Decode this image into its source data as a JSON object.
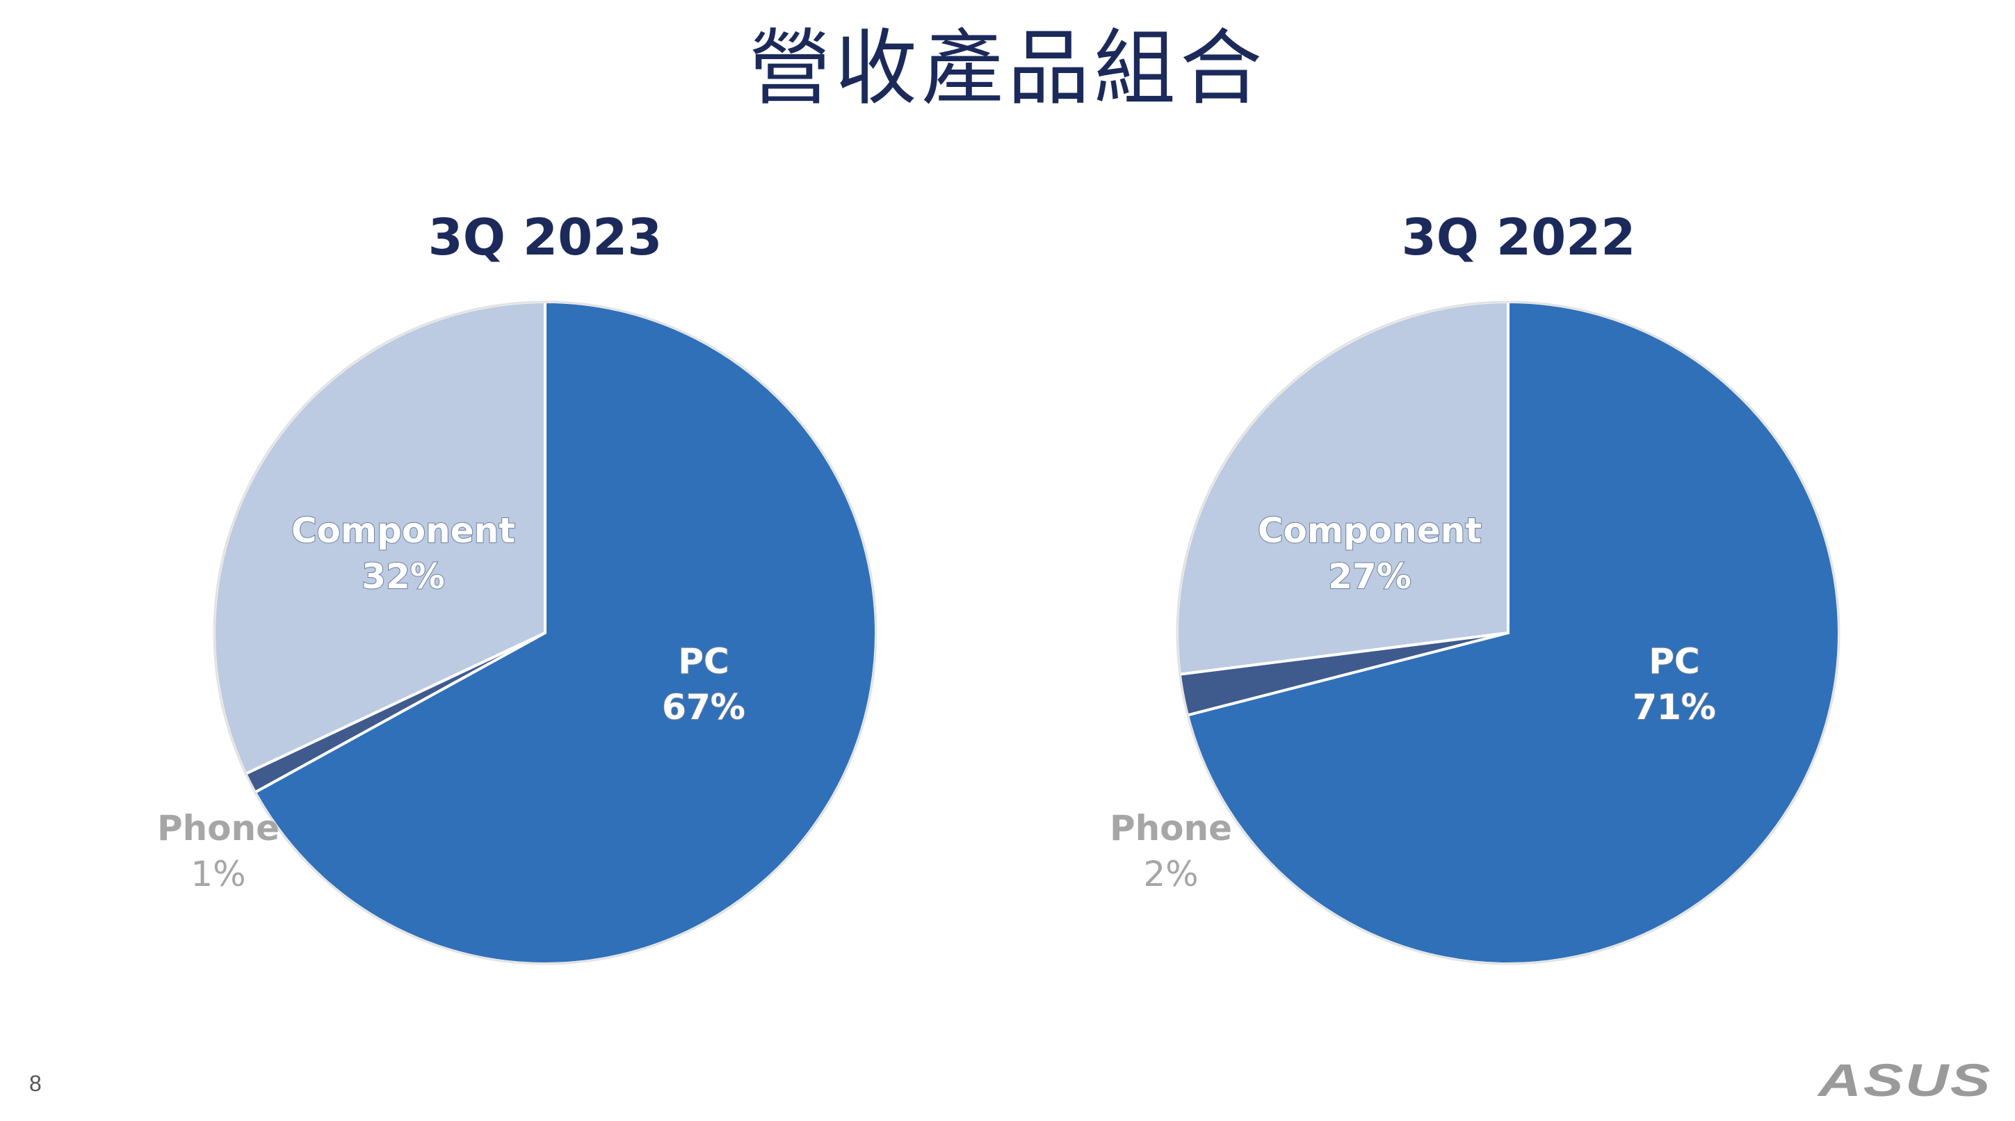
{
  "slide": {
    "title": "營收產品組合",
    "page_number": "8",
    "logo_text": "ASUS"
  },
  "colors": {
    "title": "#1b2a5a",
    "pc": "#3070b8",
    "component": "#bccbe2",
    "phone": "#3f5a8c",
    "outside_label": "#a6a6a6",
    "inside_label": "#ffffff"
  },
  "chart_data": [
    {
      "type": "pie",
      "title": "3Q 2023",
      "slices": [
        {
          "label": "PC",
          "value": 67,
          "value_label": "67%",
          "color": "#3070b8"
        },
        {
          "label": "Phone",
          "value": 1,
          "value_label": "1%",
          "color": "#3f5a8c"
        },
        {
          "label": "Component",
          "value": 32,
          "value_label": "32%",
          "color": "#bccbe2"
        }
      ],
      "start_angle": "12 o'clock",
      "direction": "clockwise"
    },
    {
      "type": "pie",
      "title": "3Q 2022",
      "slices": [
        {
          "label": "PC",
          "value": 71,
          "value_label": "71%",
          "color": "#3070b8"
        },
        {
          "label": "Phone",
          "value": 2,
          "value_label": "2%",
          "color": "#3f5a8c"
        },
        {
          "label": "Component",
          "value": 27,
          "value_label": "27%",
          "color": "#bccbe2"
        }
      ],
      "start_angle": "12 o'clock",
      "direction": "clockwise"
    }
  ]
}
